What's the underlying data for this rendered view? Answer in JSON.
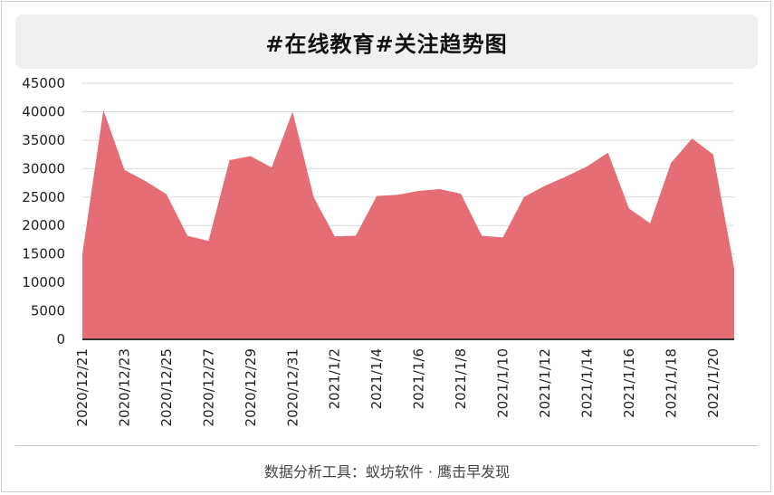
{
  "title": "#在线教育#关注趋势图",
  "footer": "数据分析工具：蚁坊软件 · 鹰击早发现",
  "colors": {
    "area": "#e56e76",
    "axis": "#333333",
    "grid": "#d9d9d9",
    "title_bg": "#f0f0f0"
  },
  "chart_data": {
    "type": "area",
    "title": "#在线教育#关注趋势图",
    "xlabel": "",
    "ylabel": "",
    "ylim": [
      0,
      45000
    ],
    "yticks": [
      0,
      5000,
      10000,
      15000,
      20000,
      25000,
      30000,
      35000,
      40000,
      45000
    ],
    "grid": true,
    "x": [
      "2020/12/21",
      "2020/12/22",
      "2020/12/23",
      "2020/12/24",
      "2020/12/25",
      "2020/12/26",
      "2020/12/27",
      "2020/12/28",
      "2020/12/29",
      "2020/12/30",
      "2020/12/31",
      "2021/1/1",
      "2021/1/2",
      "2021/1/3",
      "2021/1/4",
      "2021/1/5",
      "2021/1/6",
      "2021/1/7",
      "2021/1/8",
      "2021/1/9",
      "2021/1/10",
      "2021/1/11",
      "2021/1/12",
      "2021/1/13",
      "2021/1/14",
      "2021/1/15",
      "2021/1/16",
      "2021/1/17",
      "2021/1/18",
      "2021/1/19",
      "2021/1/20",
      "2021/1/21"
    ],
    "xticks": [
      "2020/12/21",
      "2020/12/23",
      "2020/12/25",
      "2020/12/27",
      "2020/12/29",
      "2020/12/31",
      "2021/1/2",
      "2021/1/4",
      "2021/1/6",
      "2021/1/8",
      "2021/1/10",
      "2021/1/12",
      "2021/1/14",
      "2021/1/16",
      "2021/1/18",
      "2021/1/20"
    ],
    "values": [
      15000,
      40300,
      29800,
      27800,
      25500,
      18200,
      17300,
      31500,
      32200,
      30200,
      40000,
      25000,
      18100,
      18200,
      25200,
      25400,
      26100,
      26400,
      25600,
      18200,
      17900,
      25000,
      27000,
      28600,
      30400,
      32800,
      23000,
      20400,
      31000,
      35300,
      32500,
      12500
    ]
  }
}
